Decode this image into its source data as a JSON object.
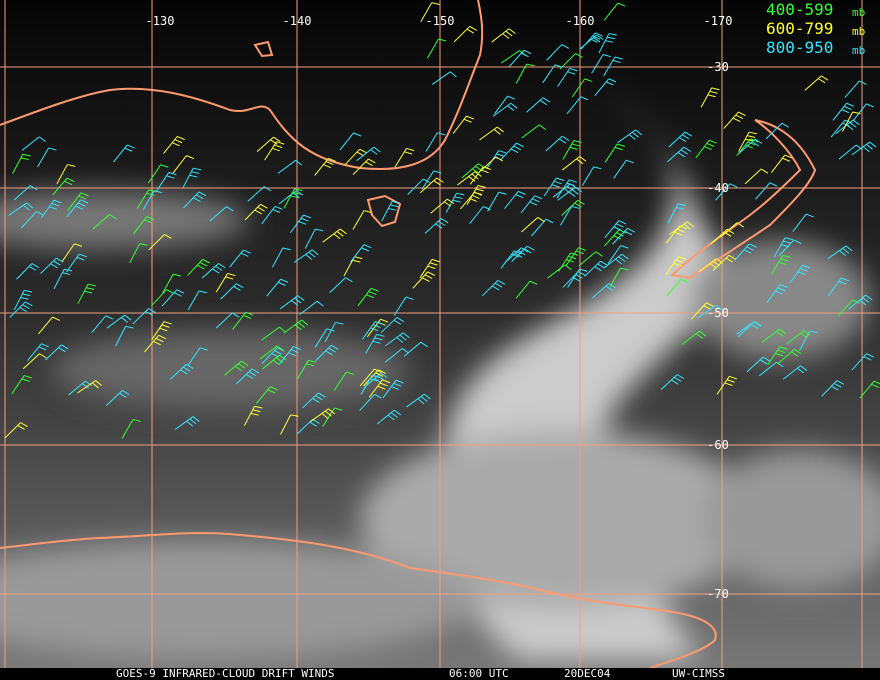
{
  "map": {
    "lon_labels": [
      "-130",
      "-140",
      "-150",
      "-160",
      "-170"
    ],
    "lat_labels": [
      "-30",
      "-40",
      "-50",
      "-60",
      "-70"
    ],
    "legend": [
      {
        "label": "400-599",
        "unit": "mb",
        "color": "#33ff33"
      },
      {
        "label": "600-799",
        "unit": "mb",
        "color": "#ffff33"
      },
      {
        "label": "800-950",
        "unit": "mb",
        "color": "#33e5ff"
      }
    ],
    "footer": {
      "satellite": "GOES-9 INFRARED-CLOUD DRIFT WINDS",
      "time": "06:00 UTC",
      "date": "20DEC04",
      "source": "UW-CIMSS"
    }
  }
}
